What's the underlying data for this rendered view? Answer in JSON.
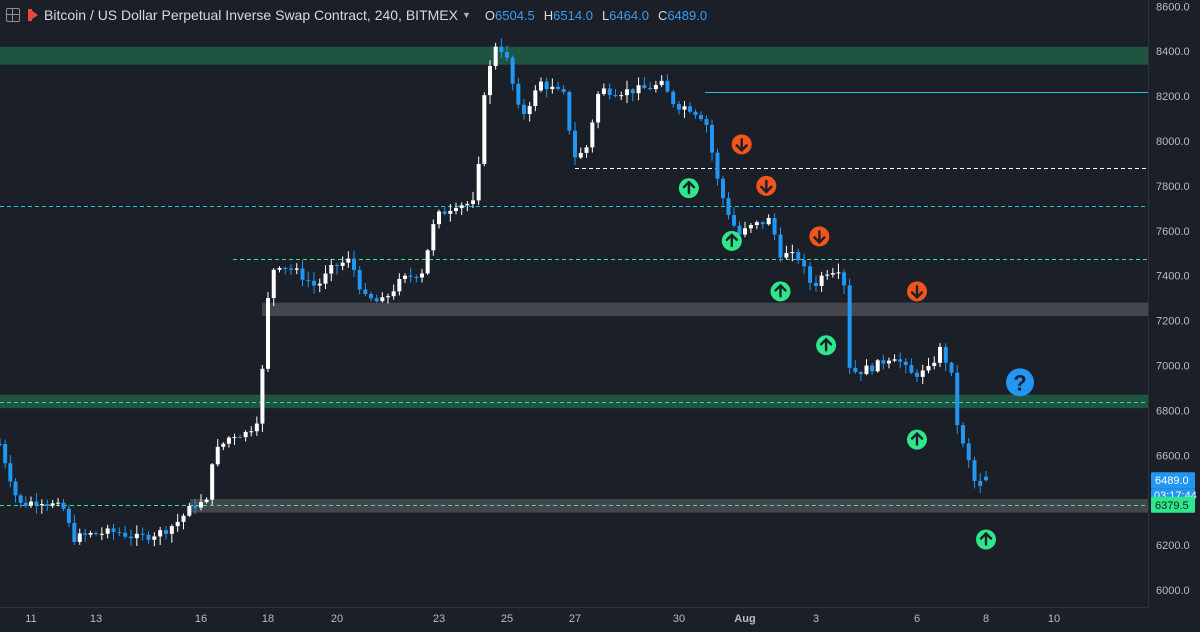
{
  "header": {
    "title": "Bitcoin / US Dollar Perpetual Inverse Swap Contract, 240, BITMEX",
    "ohlc": [
      {
        "key": "O",
        "value": "6504.5"
      },
      {
        "key": "H",
        "value": "6514.0"
      },
      {
        "key": "L",
        "value": "6464.0"
      },
      {
        "key": "C",
        "value": "6489.0"
      }
    ]
  },
  "price_axis": {
    "ticks": [
      "8600.0",
      "8400.0",
      "8200.0",
      "8000.0",
      "7800.0",
      "7600.0",
      "7400.0",
      "7200.0",
      "7000.0",
      "6800.0",
      "6600.0",
      "6400.0",
      "6200.0",
      "6000.0"
    ],
    "last_price": "6489.0",
    "countdown": "03:17:44",
    "level_label": "6379.5"
  },
  "time_axis": {
    "labels": [
      "11",
      "13",
      "16",
      "18",
      "20",
      "23",
      "25",
      "27",
      "30",
      "Aug",
      "3",
      "6",
      "8",
      "10"
    ]
  },
  "colors": {
    "background": "#1b1f27",
    "up_candle": "#ffffff",
    "down_candle": "#2196f3",
    "zone_green": "#1f5a45",
    "zone_gray": "#4a4d55",
    "up_marker": "#2ee68b",
    "down_marker": "#f1541c",
    "question_marker": "#2196f3",
    "dashed_green": "#2ee68b",
    "dashed_cyan": "#22c3d6",
    "solid_cyan": "#22c3d6"
  },
  "chart_data": {
    "type": "candlestick",
    "title": "Bitcoin / US Dollar Perpetual Inverse Swap Contract, 240, BITMEX",
    "interval": "240",
    "ylim": [
      5950,
      8650
    ],
    "xlim_labels": [
      "11",
      "13",
      "16",
      "18",
      "20",
      "23",
      "25",
      "27",
      "30",
      "Aug",
      "3",
      "6",
      "8",
      "10"
    ],
    "ohlc_last": {
      "open": 6504.5,
      "high": 6514.0,
      "low": 6464.0,
      "close": 6489.0
    },
    "close_path": [
      {
        "d": 10.0,
        "c": 6650
      },
      {
        "d": 10.6,
        "c": 6380
      },
      {
        "d": 11.3,
        "c": 6400
      },
      {
        "d": 12.0,
        "c": 6360
      },
      {
        "d": 12.3,
        "c": 6230
      },
      {
        "d": 12.9,
        "c": 6250
      },
      {
        "d": 13.6,
        "c": 6260
      },
      {
        "d": 14.2,
        "c": 6230
      },
      {
        "d": 14.9,
        "c": 6260
      },
      {
        "d": 15.3,
        "c": 6300
      },
      {
        "d": 15.8,
        "c": 6380
      },
      {
        "d": 16.2,
        "c": 6390
      },
      {
        "d": 16.35,
        "c": 6600
      },
      {
        "d": 16.9,
        "c": 6690
      },
      {
        "d": 17.4,
        "c": 6700
      },
      {
        "d": 17.75,
        "c": 6780
      },
      {
        "d": 17.95,
        "c": 7250
      },
      {
        "d": 18.2,
        "c": 7460
      },
      {
        "d": 18.8,
        "c": 7420
      },
      {
        "d": 19.4,
        "c": 7350
      },
      {
        "d": 19.9,
        "c": 7440
      },
      {
        "d": 20.4,
        "c": 7470
      },
      {
        "d": 20.8,
        "c": 7300
      },
      {
        "d": 21.3,
        "c": 7280
      },
      {
        "d": 21.9,
        "c": 7380
      },
      {
        "d": 22.5,
        "c": 7420
      },
      {
        "d": 22.9,
        "c": 7660
      },
      {
        "d": 23.5,
        "c": 7720
      },
      {
        "d": 24.1,
        "c": 7720
      },
      {
        "d": 24.3,
        "c": 8200
      },
      {
        "d": 24.7,
        "c": 8450
      },
      {
        "d": 25.0,
        "c": 8360
      },
      {
        "d": 25.4,
        "c": 8100
      },
      {
        "d": 26.0,
        "c": 8260
      },
      {
        "d": 26.7,
        "c": 8200
      },
      {
        "d": 26.95,
        "c": 7930
      },
      {
        "d": 27.3,
        "c": 7950
      },
      {
        "d": 27.7,
        "c": 8230
      },
      {
        "d": 28.3,
        "c": 8220
      },
      {
        "d": 28.9,
        "c": 8230
      },
      {
        "d": 29.5,
        "c": 8250
      },
      {
        "d": 29.9,
        "c": 8160
      },
      {
        "d": 30.3,
        "c": 8150
      },
      {
        "d": 30.8,
        "c": 8100
      },
      {
        "d": 31.2,
        "c": 7800
      },
      {
        "d": 31.5,
        "c": 7680
      },
      {
        "d": 31.8,
        "c": 7580
      },
      {
        "d": 32.2,
        "c": 7620
      },
      {
        "d": 32.7,
        "c": 7650
      },
      {
        "d": 33.0,
        "c": 7500
      },
      {
        "d": 33.5,
        "c": 7480
      },
      {
        "d": 33.9,
        "c": 7350
      },
      {
        "d": 34.3,
        "c": 7420
      },
      {
        "d": 34.8,
        "c": 7440
      },
      {
        "d": 35.0,
        "c": 7000
      },
      {
        "d": 35.2,
        "c": 6970
      },
      {
        "d": 35.8,
        "c": 7000
      },
      {
        "d": 36.3,
        "c": 7050
      },
      {
        "d": 36.8,
        "c": 6960
      },
      {
        "d": 37.3,
        "c": 6970
      },
      {
        "d": 37.7,
        "c": 7080
      },
      {
        "d": 38.0,
        "c": 6950
      },
      {
        "d": 38.2,
        "c": 6700
      },
      {
        "d": 38.5,
        "c": 6570
      },
      {
        "d": 38.75,
        "c": 6440
      },
      {
        "d": 39.05,
        "c": 6489
      }
    ],
    "horizontal_levels": [
      {
        "type": "zone",
        "color": "green",
        "from": 8340,
        "to": 8420
      },
      {
        "type": "zone",
        "color": "green",
        "from": 6810,
        "to": 6870
      },
      {
        "type": "zone",
        "color": "gray",
        "from": 7220,
        "to": 7280
      },
      {
        "type": "zone",
        "color": "gray",
        "from": 6345,
        "to": 6405
      },
      {
        "type": "line",
        "style": "solid",
        "color": "cyan",
        "price": 8220
      },
      {
        "type": "line",
        "style": "dashed",
        "color": "white",
        "price": 7880
      },
      {
        "type": "line",
        "style": "dashed",
        "color": "cyan",
        "price": 7710
      },
      {
        "type": "line",
        "style": "dashed",
        "color": "green",
        "price": 7475
      },
      {
        "type": "line",
        "style": "dashed",
        "color": "green",
        "price": 6838
      },
      {
        "type": "line",
        "style": "dashed",
        "color": "green",
        "price": 6380
      }
    ],
    "markers": [
      {
        "type": "up",
        "d": 30.3,
        "price": 7790
      },
      {
        "type": "up",
        "d": 31.6,
        "price": 7555
      },
      {
        "type": "up",
        "d": 33.0,
        "price": 7330
      },
      {
        "type": "up",
        "d": 34.3,
        "price": 7090
      },
      {
        "type": "up",
        "d": 37.0,
        "price": 6670
      },
      {
        "type": "up",
        "d": 39.0,
        "price": 6225
      },
      {
        "type": "down",
        "d": 31.9,
        "price": 7985
      },
      {
        "type": "down",
        "d": 32.6,
        "price": 7800
      },
      {
        "type": "down",
        "d": 34.1,
        "price": 7575
      },
      {
        "type": "down",
        "d": 37.0,
        "price": 7330
      },
      {
        "type": "question",
        "d": 40.0,
        "price": 6925
      }
    ]
  }
}
